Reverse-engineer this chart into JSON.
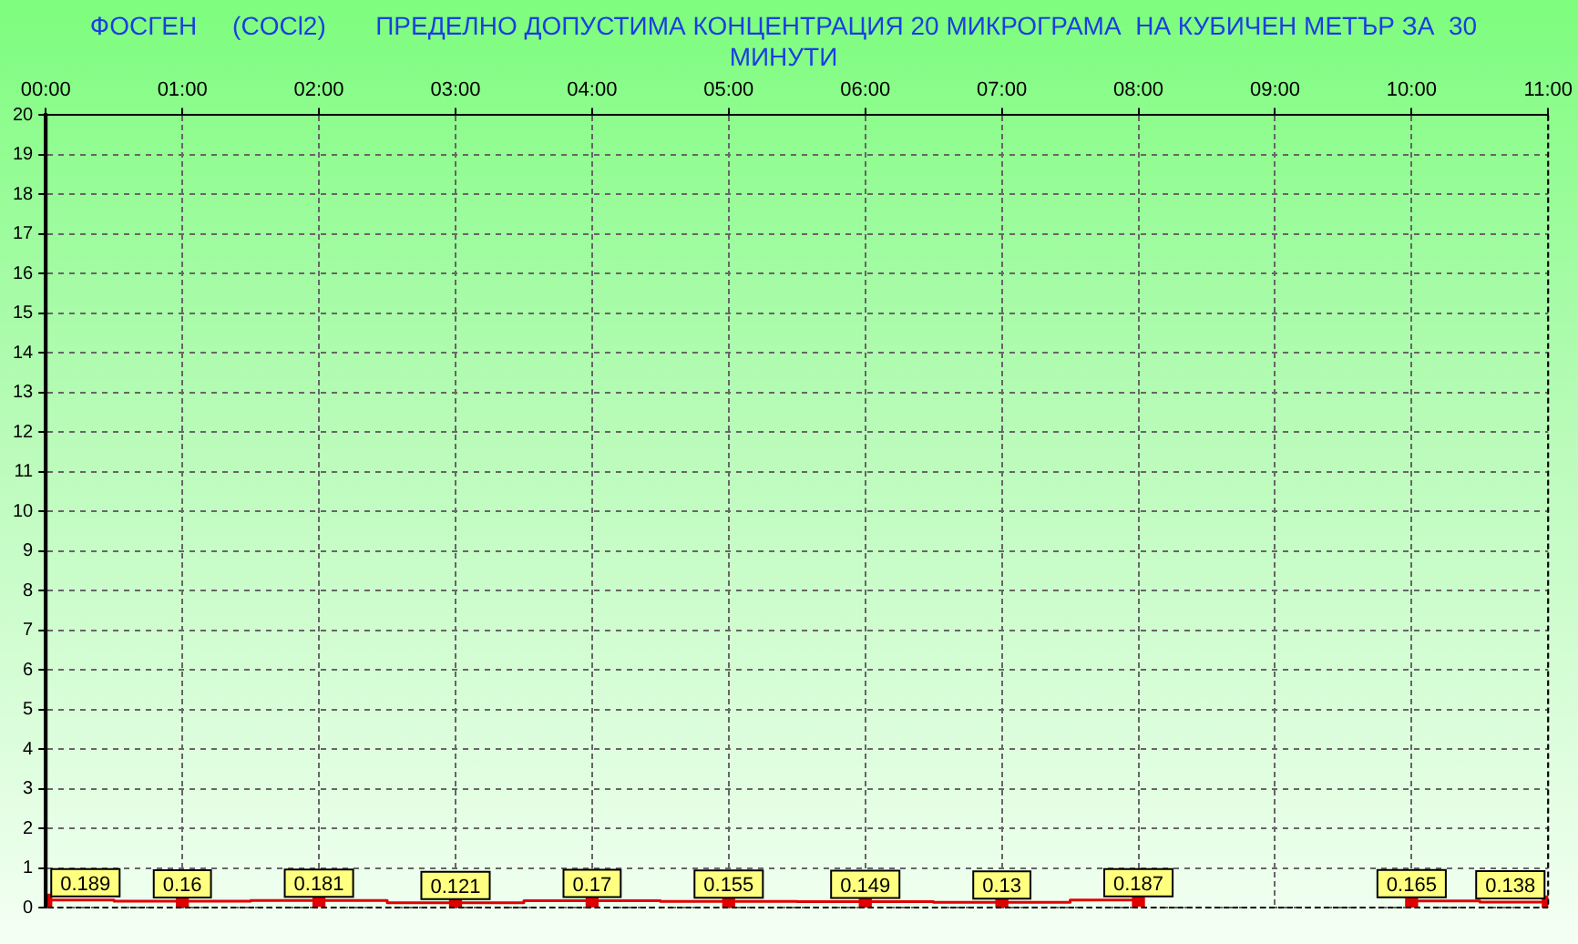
{
  "chart_data": {
    "type": "step",
    "title": "ФОСГЕН     (COCl2)       ПРЕДЕЛНО ДОПУСТИМА КОНЦЕНТРАЦИЯ 20 МИКРОГРАМА  НА КУБИЧЕН МЕТЪР ЗА  30 МИНУТИ",
    "x": [
      0,
      1,
      2,
      3,
      4,
      5,
      6,
      7,
      8,
      9,
      10,
      11
    ],
    "series": [
      {
        "color": "#e00000",
        "values": [
          0.189,
          0.16,
          0.181,
          0.121,
          0.17,
          0.155,
          0.149,
          0.13,
          0.187,
          null,
          0.165,
          0.138
        ]
      }
    ],
    "xlim": [
      0,
      11
    ],
    "xticks": [
      {
        "value": 0,
        "label": "00:00"
      },
      {
        "value": 1,
        "label": "01:00"
      },
      {
        "value": 2,
        "label": "02:00"
      },
      {
        "value": 3,
        "label": "03:00"
      },
      {
        "value": 4,
        "label": "04:00"
      },
      {
        "value": 5,
        "label": "05:00"
      },
      {
        "value": 6,
        "label": "06:00"
      },
      {
        "value": 7,
        "label": "07:00"
      },
      {
        "value": 8,
        "label": "08:00"
      },
      {
        "value": 9,
        "label": "09:00"
      },
      {
        "value": 10,
        "label": "10:00"
      },
      {
        "value": 11,
        "label": "11:00"
      }
    ],
    "ylim": [
      0,
      20
    ],
    "yticks": [
      0,
      1,
      2,
      3,
      4,
      5,
      6,
      7,
      8,
      9,
      10,
      11,
      12,
      13,
      14,
      15,
      16,
      17,
      18,
      19,
      20
    ],
    "grid": true,
    "legend": false,
    "marker": "square",
    "line_style": "solid",
    "data_labels": true
  }
}
